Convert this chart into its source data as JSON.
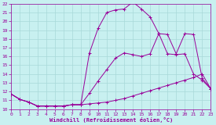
{
  "xlabel": "Windchill (Refroidissement éolien,°C)",
  "xlim": [
    0,
    23
  ],
  "ylim": [
    10,
    22
  ],
  "xticks": [
    0,
    1,
    2,
    3,
    4,
    5,
    6,
    7,
    8,
    9,
    10,
    11,
    12,
    13,
    14,
    15,
    16,
    17,
    18,
    19,
    20,
    21,
    22,
    23
  ],
  "yticks": [
    10,
    11,
    12,
    13,
    14,
    15,
    16,
    17,
    18,
    19,
    20,
    21,
    22
  ],
  "bg_color": "#c8f0f0",
  "grid_color": "#a8d8d8",
  "line_color": "#990099",
  "line1_x": [
    0,
    1,
    2,
    3,
    4,
    5,
    6,
    7,
    8,
    9,
    10,
    11,
    12,
    13,
    14,
    15,
    16,
    17,
    18,
    19,
    20,
    21,
    22,
    23
  ],
  "line1_y": [
    11.7,
    11.1,
    10.8,
    10.35,
    10.35,
    10.35,
    10.35,
    10.5,
    10.5,
    10.6,
    10.7,
    10.8,
    11.0,
    11.2,
    11.5,
    11.8,
    12.1,
    12.4,
    12.7,
    13.0,
    13.3,
    13.6,
    14.0,
    12.3
  ],
  "line2_x": [
    0,
    1,
    2,
    3,
    4,
    5,
    6,
    7,
    8,
    9,
    10,
    11,
    12,
    13,
    14,
    15,
    16,
    17,
    18,
    19,
    20,
    21,
    22,
    23
  ],
  "line2_y": [
    11.7,
    11.1,
    10.8,
    10.35,
    10.35,
    10.35,
    10.35,
    10.5,
    10.5,
    11.8,
    13.2,
    14.5,
    15.8,
    16.4,
    16.2,
    16.0,
    16.3,
    18.6,
    16.3,
    16.2,
    16.3,
    14.0,
    13.3,
    12.3
  ],
  "line3_x": [
    0,
    1,
    2,
    3,
    4,
    5,
    6,
    7,
    8,
    9,
    10,
    11,
    12,
    13,
    14,
    15,
    16,
    17,
    18,
    19,
    20,
    21,
    22,
    23
  ],
  "line3_y": [
    11.7,
    11.1,
    10.8,
    10.35,
    10.35,
    10.35,
    10.35,
    10.5,
    10.5,
    16.4,
    19.2,
    21.0,
    21.3,
    21.4,
    22.2,
    21.4,
    20.5,
    18.6,
    18.5,
    16.3,
    18.6,
    18.5,
    13.5,
    12.3
  ]
}
